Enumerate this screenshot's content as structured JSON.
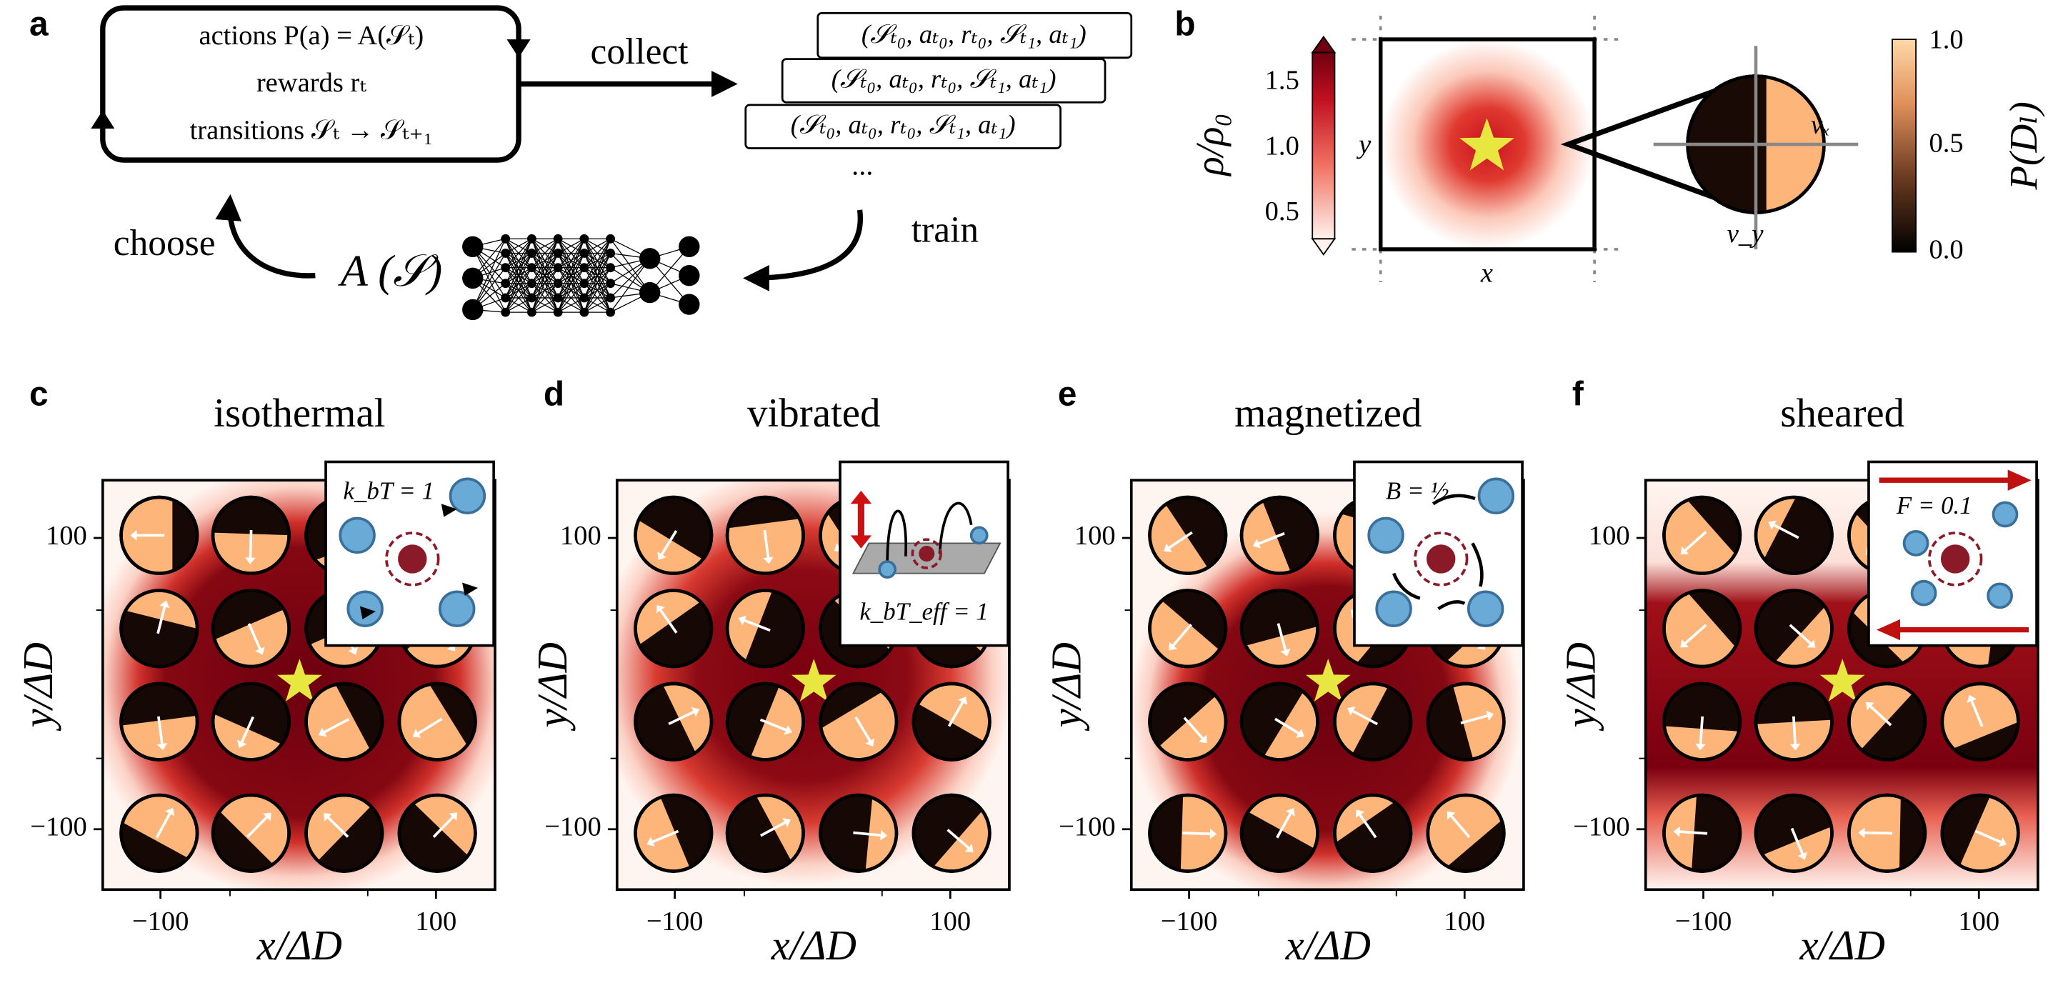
{
  "panel_a": {
    "label": "a",
    "loop": [
      "actions  P(a) = A(𝒮ₜ)",
      "rewards  rₜ",
      "transitions  𝒮ₜ → 𝒮ₜ₊₁"
    ],
    "collect": "collect",
    "tuples": [
      "(𝒮ₜ₀, aₜ₀, rₜ₀, 𝒮ₜ₁, aₜ₁)",
      "(𝒮ₜ₀, aₜ₀, rₜ₀, 𝒮ₜ₁, aₜ₁)",
      "(𝒮ₜ₀, aₜ₀, rₜ₀, 𝒮ₜ₁, aₜ₁)"
    ],
    "ellipsis": "...",
    "train": "train",
    "policy": "A (𝒮)",
    "choose": "choose"
  },
  "panel_b": {
    "label": "b",
    "density_bar": {
      "label": "ρ/ρ₀",
      "ticks": [
        "1.5",
        "1.0",
        "0.5"
      ]
    },
    "x": "x",
    "y": "y",
    "vx": "vₓ",
    "vy": "v_y",
    "prob_bar": {
      "label": "P(Dₗ)",
      "ticks": [
        "1.0",
        "0.5",
        "0.0"
      ]
    }
  },
  "panels": [
    {
      "label": "c",
      "title": "isothermal",
      "inset": "k_bT = 1",
      "xticks": [
        "−100",
        "100"
      ],
      "yticks": [
        "100",
        "−100"
      ],
      "xlabel": "x/ΔD",
      "ylabel": "y/ΔD"
    },
    {
      "label": "d",
      "title": "vibrated",
      "inset": "k_bT_eff = 1",
      "xticks": [
        "−100",
        "100"
      ],
      "yticks": [
        "100",
        "−100"
      ],
      "xlabel": "x/ΔD",
      "ylabel": "y/ΔD"
    },
    {
      "label": "e",
      "title": "magnetized",
      "inset": "B = ½",
      "xticks": [
        "−100",
        "100"
      ],
      "yticks": [
        "100",
        "−100"
      ],
      "xlabel": "x/ΔD",
      "ylabel": "y/ΔD"
    },
    {
      "label": "f",
      "title": "sheared",
      "inset": "F = 0.1",
      "xticks": [
        "−100",
        "100"
      ],
      "yticks": [
        "100",
        "−100"
      ],
      "xlabel": "x/ΔD",
      "ylabel": "y/ΔD"
    }
  ]
}
